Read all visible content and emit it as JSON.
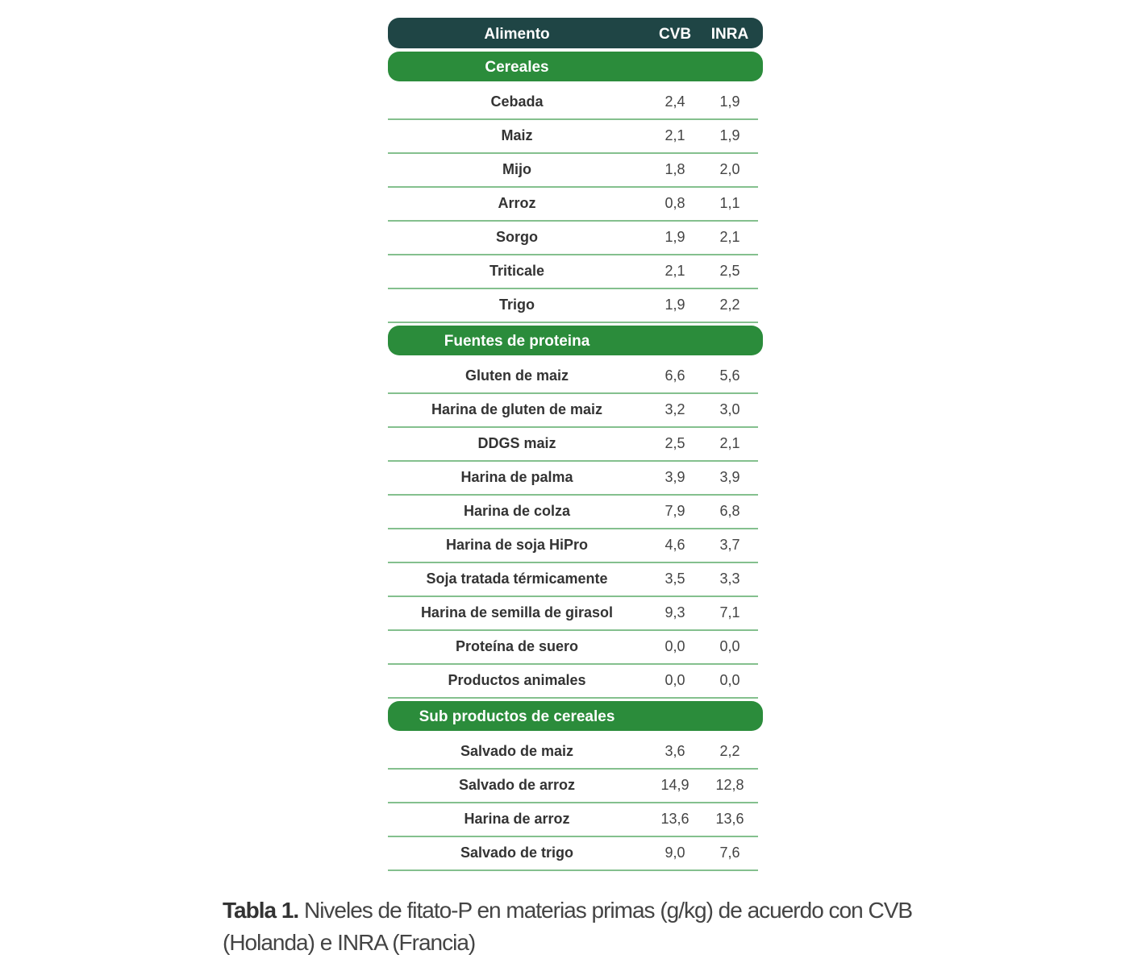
{
  "table": {
    "headers": [
      "Alimento",
      "CVB",
      "INRA"
    ],
    "sections": [
      {
        "title": "Cereales",
        "rows": [
          [
            "Cebada",
            "2,4",
            "1,9"
          ],
          [
            "Maiz",
            "2,1",
            "1,9"
          ],
          [
            "Mijo",
            "1,8",
            "2,0"
          ],
          [
            "Arroz",
            "0,8",
            "1,1"
          ],
          [
            "Sorgo",
            "1,9",
            "2,1"
          ],
          [
            "Triticale",
            "2,1",
            "2,5"
          ],
          [
            "Trigo",
            "1,9",
            "2,2"
          ]
        ]
      },
      {
        "title": "Fuentes de proteina",
        "rows": [
          [
            "Gluten de maiz",
            "6,6",
            "5,6"
          ],
          [
            "Harina de gluten de maiz",
            "3,2",
            "3,0"
          ],
          [
            "DDGS maiz",
            "2,5",
            "2,1"
          ],
          [
            "Harina de palma",
            "3,9",
            "3,9"
          ],
          [
            "Harina de colza",
            "7,9",
            "6,8"
          ],
          [
            "Harina de soja HiPro",
            "4,6",
            "3,7"
          ],
          [
            "Soja tratada térmicamente",
            "3,5",
            "3,3"
          ],
          [
            "Harina de semilla de girasol",
            "9,3",
            "7,1"
          ],
          [
            "Proteína de suero",
            "0,0",
            "0,0"
          ],
          [
            "Productos animales",
            "0,0",
            "0,0"
          ]
        ]
      },
      {
        "title": "Sub productos de cereales",
        "rows": [
          [
            "Salvado de maiz",
            "3,6",
            "2,2"
          ],
          [
            "Salvado de arroz",
            "14,9",
            "12,8"
          ],
          [
            "Harina de arroz",
            "13,6",
            "13,6"
          ],
          [
            "Salvado de trigo",
            "9,0",
            "7,6"
          ]
        ]
      }
    ]
  },
  "caption": {
    "label": "Tabla 1.",
    "text": "Niveles de fitato-P en materias primas (g/kg) de acuerdo con CVB (Holanda) e INRA (Francia)"
  }
}
